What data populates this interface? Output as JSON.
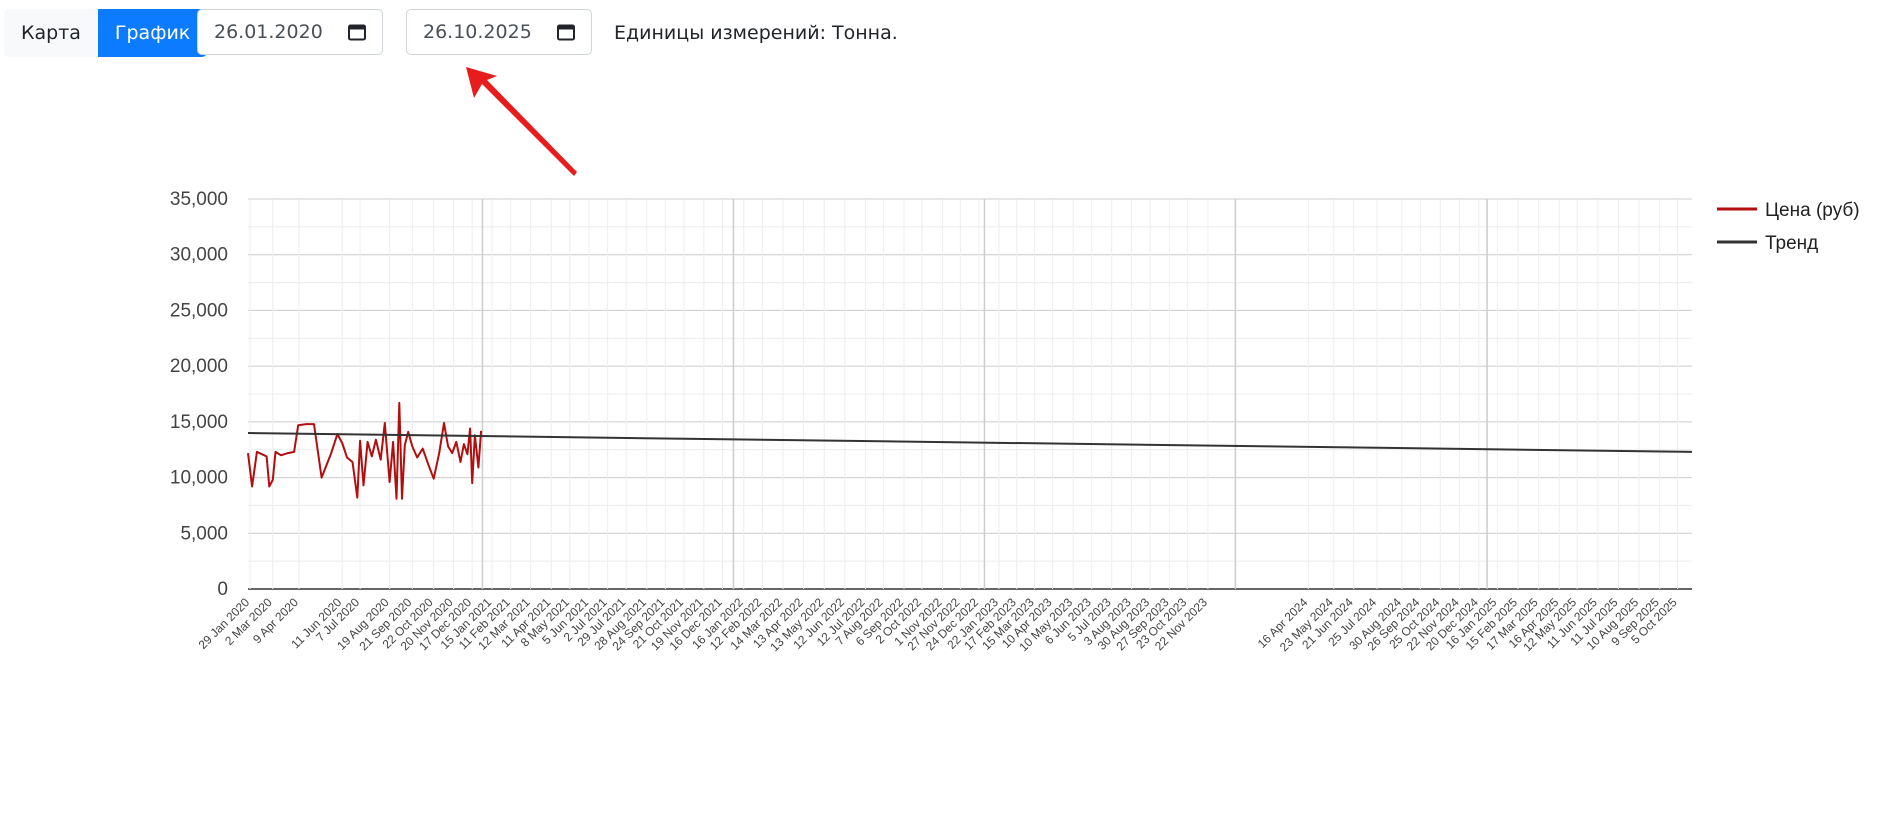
{
  "toolbar": {
    "map_label": "Карта",
    "chart_label": "График",
    "date_from": "26.01.2020",
    "date_to": "26.10.2025",
    "units_label": "Единицы измерений: Тонна."
  },
  "colors": {
    "price_line": "#b30d0d",
    "trend_line": "#333333",
    "primary": "#0d7bff",
    "arrow": "#e81c1c"
  },
  "chart_data": {
    "type": "line",
    "title": "",
    "xlabel": "",
    "ylabel": "",
    "ylim": [
      0,
      35000
    ],
    "yticks": [
      "0",
      "5,000",
      "10,000",
      "15,000",
      "20,000",
      "25,000",
      "30,000",
      "35,000"
    ],
    "grid": true,
    "legend_position": "right",
    "x_range": [
      "2020-01-26",
      "2025-10-26"
    ],
    "x_tick_labels": [
      "29 Jan 2020",
      "2 Mar 2020",
      "9 Apr 2020",
      "11 Jun 2020",
      "7 Jul 2020",
      "19 Aug 2020",
      "21 Sep 2020",
      "22 Oct 2020",
      "20 Nov 2020",
      "17 Dec 2020",
      "15 Jan 2021",
      "11 Feb 2021",
      "12 Mar 2021",
      "11 Apr 2021",
      "8 May 2021",
      "5 Jun 2021",
      "2 Jul 2021",
      "29 Jul 2021",
      "28 Aug 2021",
      "24 Sep 2021",
      "21 Oct 2021",
      "19 Nov 2021",
      "16 Dec 2021",
      "16 Jan 2022",
      "12 Feb 2022",
      "14 Mar 2022",
      "13 Apr 2022",
      "13 May 2022",
      "12 Jun 2022",
      "12 Jul 2022",
      "7 Aug 2022",
      "6 Sep 2022",
      "2 Oct 2022",
      "1 Nov 2022",
      "27 Nov 2022",
      "24 Dec 2022",
      "22 Jan 2023",
      "17 Feb 2023",
      "15 Mar 2023",
      "10 Apr 2023",
      "10 May 2023",
      "6 Jun 2023",
      "5 Jul 2023",
      "3 Aug 2023",
      "30 Aug 2023",
      "27 Sep 2023",
      "23 Oct 2023",
      "22 Nov 2023",
      "16 Apr 2024",
      "23 May 2024",
      "21 Jun 2024",
      "25 Jul 2024",
      "30 Aug 2024",
      "26 Sep 2024",
      "25 Oct 2024",
      "22 Nov 2024",
      "20 Dec 2024",
      "16 Jan 2025",
      "15 Feb 2025",
      "17 Mar 2025",
      "16 Apr 2025",
      "12 May 2025",
      "11 Jun 2025",
      "11 Jul 2025",
      "10 Aug 2025",
      "9 Sep 2025",
      "5 Oct 2025"
    ],
    "series": [
      {
        "name": "Цена (руб)",
        "color": "#b30d0d",
        "points": [
          [
            "2020-01-26",
            12200
          ],
          [
            "2020-02-01",
            9200
          ],
          [
            "2020-02-08",
            12300
          ],
          [
            "2020-02-15",
            12100
          ],
          [
            "2020-02-22",
            11900
          ],
          [
            "2020-02-26",
            9200
          ],
          [
            "2020-03-02",
            9800
          ],
          [
            "2020-03-06",
            12300
          ],
          [
            "2020-03-14",
            12000
          ],
          [
            "2020-03-24",
            12200
          ],
          [
            "2020-04-02",
            12300
          ],
          [
            "2020-04-08",
            14700
          ],
          [
            "2020-04-20",
            14800
          ],
          [
            "2020-05-01",
            14800
          ],
          [
            "2020-05-12",
            10000
          ],
          [
            "2020-05-26",
            12200
          ],
          [
            "2020-06-04",
            13900
          ],
          [
            "2020-06-11",
            13100
          ],
          [
            "2020-06-18",
            11800
          ],
          [
            "2020-06-26",
            11400
          ],
          [
            "2020-07-03",
            8200
          ],
          [
            "2020-07-07",
            13300
          ],
          [
            "2020-07-12",
            9300
          ],
          [
            "2020-07-18",
            13200
          ],
          [
            "2020-07-24",
            11900
          ],
          [
            "2020-07-30",
            13400
          ],
          [
            "2020-08-06",
            11600
          ],
          [
            "2020-08-12",
            14900
          ],
          [
            "2020-08-19",
            9600
          ],
          [
            "2020-08-24",
            13200
          ],
          [
            "2020-08-29",
            8100
          ],
          [
            "2020-09-02",
            16700
          ],
          [
            "2020-09-06",
            8100
          ],
          [
            "2020-09-10",
            12900
          ],
          [
            "2020-09-15",
            14100
          ],
          [
            "2020-09-21",
            12800
          ],
          [
            "2020-09-28",
            11800
          ],
          [
            "2020-10-06",
            12600
          ],
          [
            "2020-10-14",
            11200
          ],
          [
            "2020-10-22",
            9900
          ],
          [
            "2020-10-30",
            12200
          ],
          [
            "2020-11-06",
            14900
          ],
          [
            "2020-11-12",
            12800
          ],
          [
            "2020-11-18",
            12200
          ],
          [
            "2020-11-24",
            13200
          ],
          [
            "2020-11-30",
            11400
          ],
          [
            "2020-12-05",
            13000
          ],
          [
            "2020-12-10",
            12100
          ],
          [
            "2020-12-14",
            14400
          ],
          [
            "2020-12-17",
            9500
          ],
          [
            "2020-12-21",
            13800
          ],
          [
            "2020-12-26",
            10900
          ],
          [
            "2020-12-30",
            14200
          ]
        ]
      },
      {
        "name": "Тренд",
        "color": "#333333",
        "points": [
          [
            "2020-01-26",
            14000
          ],
          [
            "2025-10-26",
            12300
          ]
        ]
      }
    ]
  }
}
